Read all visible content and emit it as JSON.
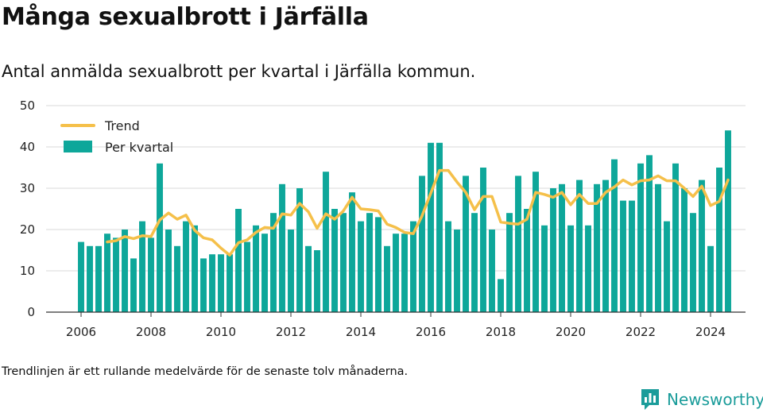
{
  "header": {
    "title": "Många sexualbrott i Järfälla",
    "subtitle": "Antal anmälda sexualbrott per kvartal i Järfälla kommun."
  },
  "footnote": "Trendlinjen är ett rullande medelvärde för de senaste tolv månaderna.",
  "brand": {
    "name": "Newsworthy",
    "color": "#1a9c9a",
    "icon": "newsworthy-logo-icon"
  },
  "colors": {
    "bar": "#0ea79a",
    "trend": "#f5c04a",
    "grid": "#d9d9d9",
    "axis": "#333333"
  },
  "chart_data": {
    "type": "bar",
    "grid": true,
    "legend_position": "top-left",
    "ylim": [
      0,
      50
    ],
    "yticks": [
      0,
      10,
      20,
      30,
      40,
      50
    ],
    "xticks": [
      "2006",
      "2008",
      "2010",
      "2012",
      "2014",
      "2016",
      "2018",
      "2020",
      "2022",
      "2024"
    ],
    "xlim": [
      "2005",
      "2025"
    ],
    "categories": [
      "2006Q1",
      "2006Q2",
      "2006Q3",
      "2006Q4",
      "2007Q1",
      "2007Q2",
      "2007Q3",
      "2007Q4",
      "2008Q1",
      "2008Q2",
      "2008Q3",
      "2008Q4",
      "2009Q1",
      "2009Q2",
      "2009Q3",
      "2009Q4",
      "2010Q1",
      "2010Q2",
      "2010Q3",
      "2010Q4",
      "2011Q1",
      "2011Q2",
      "2011Q3",
      "2011Q4",
      "2012Q1",
      "2012Q2",
      "2012Q3",
      "2012Q4",
      "2013Q1",
      "2013Q2",
      "2013Q3",
      "2013Q4",
      "2014Q1",
      "2014Q2",
      "2014Q3",
      "2014Q4",
      "2015Q1",
      "2015Q2",
      "2015Q3",
      "2015Q4",
      "2016Q1",
      "2016Q2",
      "2016Q3",
      "2016Q4",
      "2017Q1",
      "2017Q2",
      "2017Q3",
      "2017Q4",
      "2018Q1",
      "2018Q2",
      "2018Q3",
      "2018Q4",
      "2019Q1",
      "2019Q2",
      "2019Q3",
      "2019Q4",
      "2020Q1",
      "2020Q2",
      "2020Q3",
      "2020Q4",
      "2021Q1",
      "2021Q2",
      "2021Q3",
      "2021Q4",
      "2022Q1",
      "2022Q2",
      "2022Q3",
      "2022Q4",
      "2023Q1",
      "2023Q2",
      "2023Q3",
      "2023Q4",
      "2024Q1",
      "2024Q2",
      "2024Q3"
    ],
    "series": [
      {
        "name": "Per kvartal",
        "type": "bar",
        "values": [
          17,
          16,
          16,
          19,
          18,
          20,
          13,
          22,
          18,
          36,
          20,
          16,
          22,
          21,
          13,
          14,
          14,
          14,
          25,
          17,
          21,
          19,
          24,
          31,
          20,
          30,
          16,
          15,
          34,
          25,
          24,
          29,
          22,
          24,
          23,
          16,
          19,
          19,
          22,
          33,
          41,
          41,
          22,
          20,
          33,
          24,
          35,
          20,
          8,
          24,
          33,
          25,
          34,
          21,
          30,
          31,
          21,
          32,
          21,
          31,
          32,
          37,
          27,
          27,
          36,
          38,
          31,
          22,
          36,
          30,
          24,
          32,
          16,
          35,
          44
        ]
      },
      {
        "name": "Trend",
        "type": "line",
        "values": [
          null,
          null,
          null,
          17.0,
          17.3,
          18.3,
          17.8,
          18.5,
          18.3,
          22.3,
          24.0,
          22.5,
          23.5,
          19.8,
          18.0,
          17.5,
          15.5,
          13.8,
          16.8,
          17.5,
          19.3,
          20.5,
          20.3,
          23.8,
          23.5,
          26.3,
          24.3,
          20.3,
          23.8,
          22.5,
          24.5,
          27.8,
          25.0,
          24.8,
          24.5,
          21.3,
          20.5,
          19.3,
          19.0,
          23.3,
          28.8,
          34.3,
          34.3,
          31.5,
          29.0,
          24.8,
          28.0,
          28.0,
          21.8,
          21.5,
          21.3,
          22.5,
          29.0,
          28.5,
          27.8,
          29.0,
          26.0,
          28.5,
          26.3,
          26.3,
          29.0,
          30.3,
          32.0,
          30.8,
          31.8,
          32.0,
          33.0,
          31.8,
          31.8,
          30.0,
          28.0,
          30.5,
          25.8,
          26.8,
          32.0
        ]
      }
    ]
  }
}
